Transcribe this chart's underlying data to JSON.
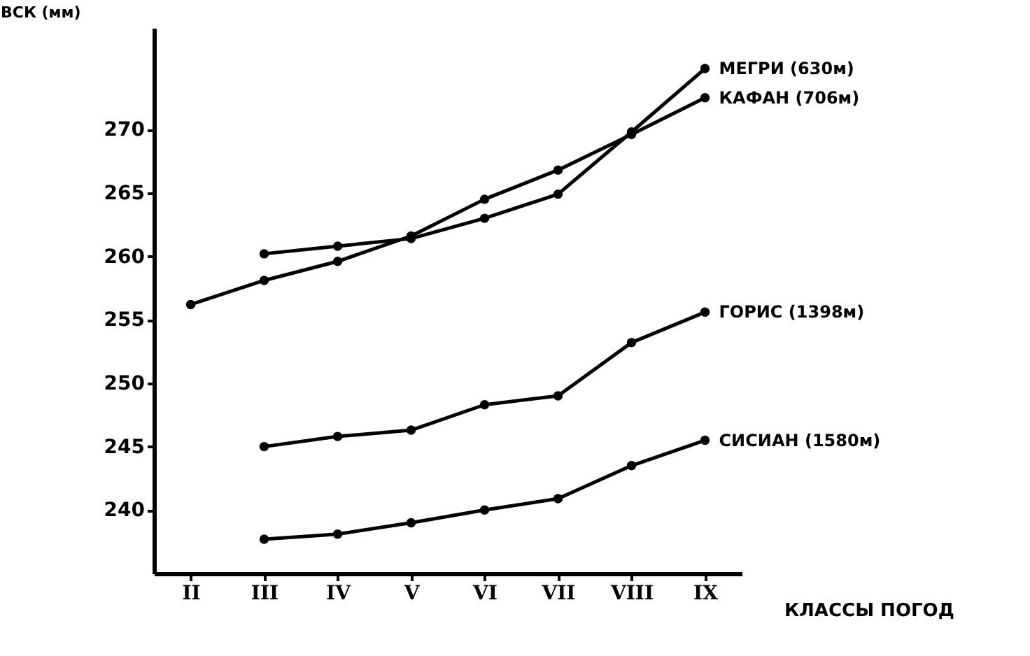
{
  "chart_data": {
    "type": "line",
    "ylabel": "ВСК (мм)",
    "xlabel": "КЛАССЫ ПОГОД",
    "categories": [
      "II",
      "III",
      "IV",
      "V",
      "VI",
      "VII",
      "VIII",
      "IX"
    ],
    "series": [
      {
        "name": "МЕГРИ (630м)",
        "color": "#000000",
        "values": [
          null,
          260.2,
          260.8,
          261.4,
          263.0,
          264.9,
          269.8,
          274.8
        ]
      },
      {
        "name": "КАФАН (706м)",
        "color": "#000000",
        "values": [
          256.2,
          258.1,
          259.6,
          261.6,
          264.5,
          266.8,
          269.6,
          272.5
        ]
      },
      {
        "name": "ГОРИС (1398м)",
        "color": "#000000",
        "values": [
          null,
          245.0,
          245.8,
          246.3,
          248.3,
          249.0,
          253.2,
          255.6
        ]
      },
      {
        "name": "СИСИАН (1580м)",
        "color": "#000000",
        "values": [
          null,
          237.7,
          238.1,
          239.0,
          240.0,
          240.9,
          243.5,
          245.5
        ]
      }
    ],
    "ylim": [
      235,
      278
    ],
    "yticks": [
      240,
      245,
      250,
      255,
      260,
      265,
      270
    ],
    "marker": "circle",
    "line_style": "solid",
    "grid": false
  }
}
